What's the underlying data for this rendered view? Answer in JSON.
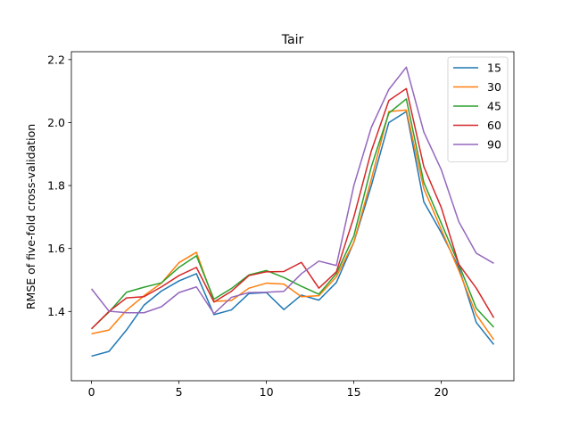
{
  "chart_data": {
    "type": "line",
    "title": "Tair",
    "xlabel": "",
    "ylabel": "RMSE of five-fold cross-validation",
    "xlim": [
      -1.15,
      24.15
    ],
    "ylim": [
      1.18,
      2.225
    ],
    "xticks": [
      0,
      5,
      10,
      15,
      20
    ],
    "yticks": [
      1.4,
      1.6,
      1.8,
      2.0,
      2.2
    ],
    "ytick_labels": [
      "1.4",
      "1.6",
      "1.8",
      "2.0",
      "2.2"
    ],
    "grid": false,
    "legend_position": "top-right",
    "x": [
      0,
      1,
      2,
      3,
      4,
      5,
      6,
      7,
      8,
      9,
      10,
      11,
      12,
      13,
      14,
      15,
      16,
      17,
      18,
      19,
      20,
      21,
      22,
      23
    ],
    "series": [
      {
        "name": "15",
        "color": "#1f77b4",
        "values": [
          1.258,
          1.273,
          1.341,
          1.42,
          1.465,
          1.497,
          1.52,
          1.39,
          1.405,
          1.457,
          1.46,
          1.406,
          1.452,
          1.436,
          1.492,
          1.62,
          1.8,
          2.0,
          2.035,
          1.748,
          1.65,
          1.54,
          1.365,
          1.295
        ]
      },
      {
        "name": "30",
        "color": "#ff7f0e",
        "values": [
          1.329,
          1.341,
          1.404,
          1.45,
          1.49,
          1.555,
          1.588,
          1.432,
          1.435,
          1.474,
          1.49,
          1.487,
          1.447,
          1.45,
          1.51,
          1.62,
          1.82,
          2.035,
          2.04,
          1.79,
          1.66,
          1.53,
          1.39,
          1.31
        ]
      },
      {
        "name": "45",
        "color": "#2ca02c",
        "values": [
          1.345,
          1.398,
          1.461,
          1.477,
          1.491,
          1.54,
          1.577,
          1.439,
          1.473,
          1.516,
          1.53,
          1.508,
          1.48,
          1.455,
          1.52,
          1.64,
          1.86,
          2.03,
          2.075,
          1.81,
          1.68,
          1.55,
          1.41,
          1.35
        ]
      },
      {
        "name": "60",
        "color": "#d62728",
        "values": [
          1.345,
          1.4,
          1.443,
          1.447,
          1.478,
          1.514,
          1.54,
          1.43,
          1.464,
          1.514,
          1.526,
          1.527,
          1.556,
          1.474,
          1.526,
          1.7,
          1.91,
          2.07,
          2.108,
          1.86,
          1.73,
          1.55,
          1.474,
          1.38
        ]
      },
      {
        "name": "90",
        "color": "#9467bd",
        "values": [
          1.472,
          1.401,
          1.396,
          1.396,
          1.415,
          1.46,
          1.478,
          1.393,
          1.445,
          1.46,
          1.461,
          1.464,
          1.52,
          1.56,
          1.546,
          1.8,
          1.985,
          2.105,
          2.176,
          1.97,
          1.85,
          1.685,
          1.585,
          1.553
        ]
      }
    ]
  }
}
